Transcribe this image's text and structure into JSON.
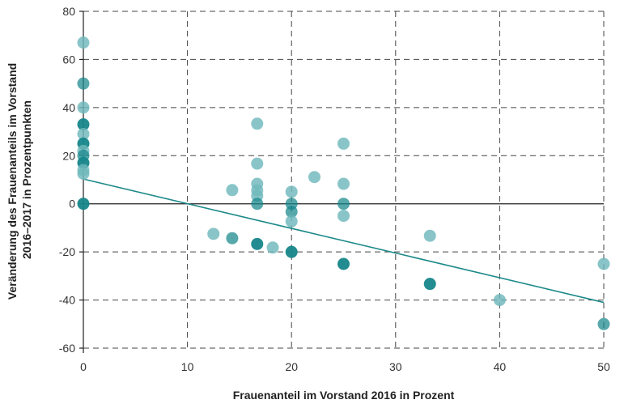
{
  "chart_data": {
    "type": "scatter",
    "title": "",
    "xlabel": "Frauenanteil im Vorstand 2016 in Prozent",
    "ylabel_lines": [
      "Veränderung des Frauenanteils im Vorstand",
      "2016–2017 in Prozentpunkten"
    ],
    "xlim": [
      0,
      50
    ],
    "ylim": [
      -60,
      80
    ],
    "x_ticks": [
      0,
      10,
      20,
      30,
      40,
      50
    ],
    "y_ticks": [
      -60,
      -40,
      -20,
      0,
      20,
      40,
      60,
      80
    ],
    "y_tick_labels": [
      "-60",
      "-40",
      "-20",
      "0",
      "20",
      "40",
      "60",
      "80"
    ],
    "grid": true,
    "colors": {
      "light": "#6fb8bc",
      "dark": "#16868a",
      "trend": "#1e8a8a",
      "grid": "#444444"
    },
    "points": [
      {
        "x": 0,
        "y": 67,
        "shade": "light"
      },
      {
        "x": 0,
        "y": 50,
        "shade": "medium"
      },
      {
        "x": 0,
        "y": 40,
        "shade": "light"
      },
      {
        "x": 0,
        "y": 33,
        "shade": "dark"
      },
      {
        "x": 0,
        "y": 29,
        "shade": "light"
      },
      {
        "x": 0,
        "y": 25,
        "shade": "dark"
      },
      {
        "x": 0,
        "y": 22,
        "shade": "light"
      },
      {
        "x": 0,
        "y": 20,
        "shade": "medium"
      },
      {
        "x": 0,
        "y": 17,
        "shade": "dark"
      },
      {
        "x": 0,
        "y": 14,
        "shade": "light"
      },
      {
        "x": 0,
        "y": 12.5,
        "shade": "light"
      },
      {
        "x": 0,
        "y": 0,
        "shade": "dark"
      },
      {
        "x": 12.5,
        "y": -12.5,
        "shade": "light"
      },
      {
        "x": 14.3,
        "y": 5.7,
        "shade": "light"
      },
      {
        "x": 14.3,
        "y": -14.3,
        "shade": "medium"
      },
      {
        "x": 16.7,
        "y": 33.3,
        "shade": "light"
      },
      {
        "x": 16.7,
        "y": 16.7,
        "shade": "light"
      },
      {
        "x": 16.7,
        "y": 8.3,
        "shade": "light"
      },
      {
        "x": 16.7,
        "y": 5.6,
        "shade": "light"
      },
      {
        "x": 16.7,
        "y": 3.3,
        "shade": "light"
      },
      {
        "x": 16.7,
        "y": 0,
        "shade": "medium"
      },
      {
        "x": 16.7,
        "y": -16.7,
        "shade": "dark"
      },
      {
        "x": 18.2,
        "y": -18.2,
        "shade": "light"
      },
      {
        "x": 20,
        "y": 5,
        "shade": "light"
      },
      {
        "x": 20,
        "y": 0,
        "shade": "medium"
      },
      {
        "x": 20,
        "y": -3.3,
        "shade": "medium"
      },
      {
        "x": 20,
        "y": -7.3,
        "shade": "light"
      },
      {
        "x": 20,
        "y": -20,
        "shade": "dark"
      },
      {
        "x": 22.2,
        "y": 11.1,
        "shade": "light"
      },
      {
        "x": 25,
        "y": 25,
        "shade": "light"
      },
      {
        "x": 25,
        "y": 8.3,
        "shade": "light"
      },
      {
        "x": 25,
        "y": 0,
        "shade": "medium"
      },
      {
        "x": 25,
        "y": -5,
        "shade": "light"
      },
      {
        "x": 25,
        "y": -25,
        "shade": "dark"
      },
      {
        "x": 33.3,
        "y": -13.3,
        "shade": "light"
      },
      {
        "x": 33.3,
        "y": -33.3,
        "shade": "dark"
      },
      {
        "x": 40,
        "y": -40,
        "shade": "light"
      },
      {
        "x": 50,
        "y": -25,
        "shade": "light"
      },
      {
        "x": 50,
        "y": -50,
        "shade": "medium"
      }
    ],
    "trendline": {
      "x": [
        0,
        50
      ],
      "y": [
        10.3,
        -41
      ]
    }
  }
}
